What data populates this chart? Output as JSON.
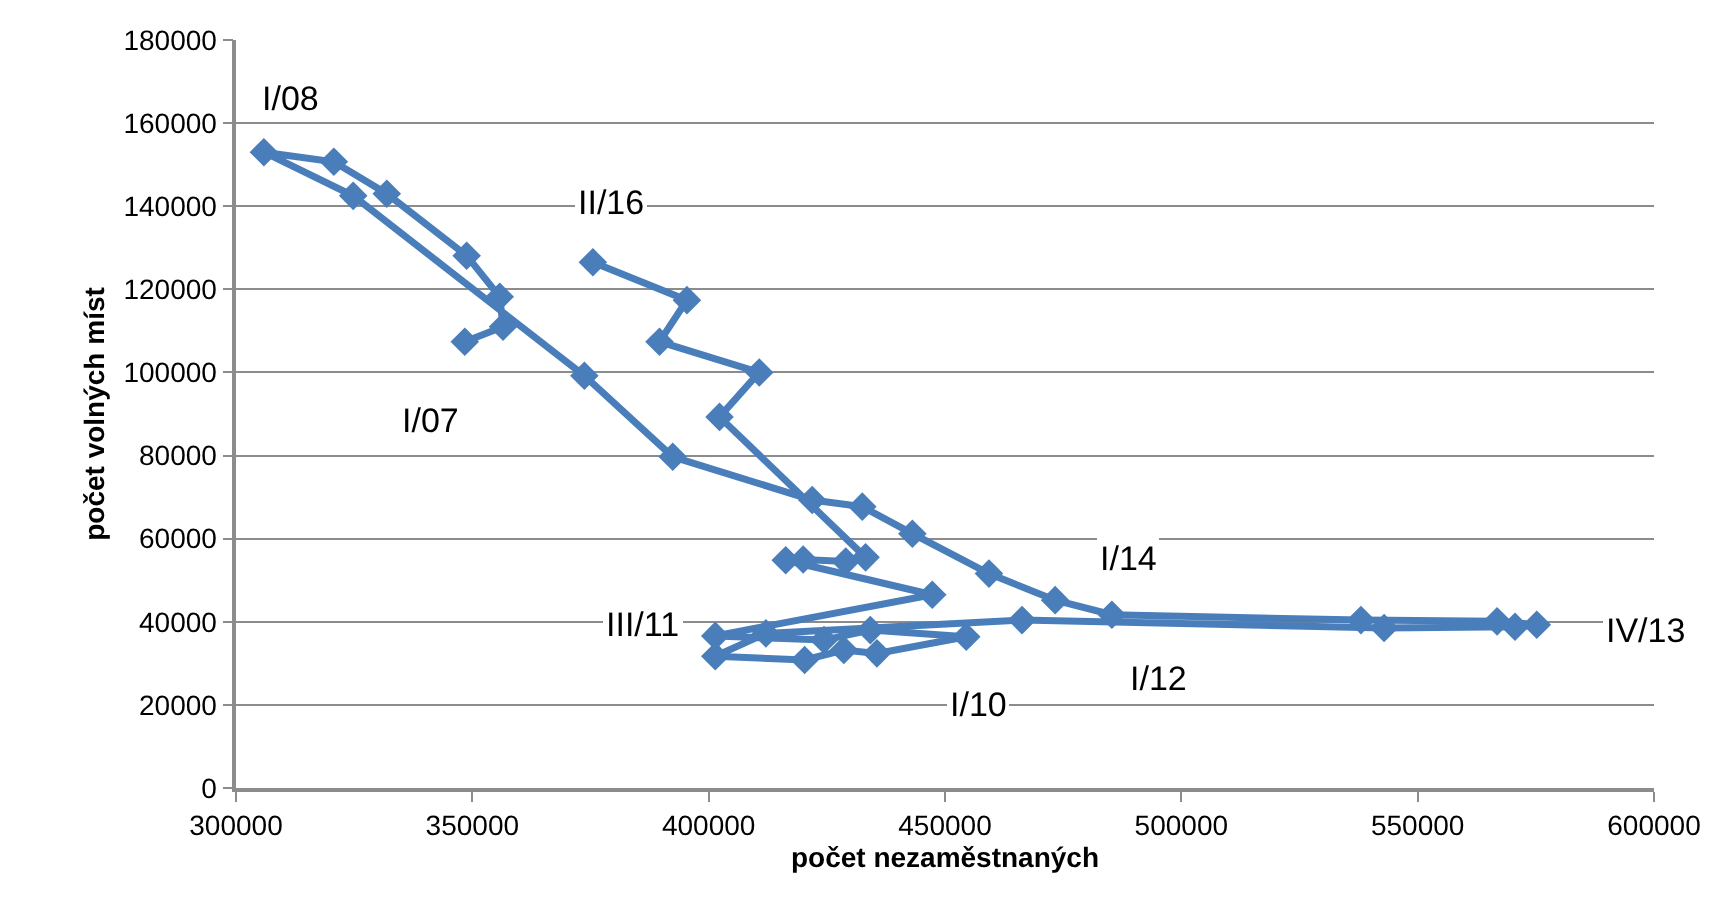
{
  "chart_data": {
    "type": "line",
    "xlabel": "počet nezaměstnaných",
    "ylabel": "počet volných míst",
    "marker": "diamond",
    "line_style": "solid",
    "grid": "y",
    "xlim": [
      300000,
      600000
    ],
    "xticks": [
      300000,
      350000,
      400000,
      450000,
      500000,
      550000,
      600000
    ],
    "ylim": [
      0,
      180000
    ],
    "yticks": [
      0,
      20000,
      40000,
      60000,
      80000,
      100000,
      120000,
      140000,
      160000,
      180000
    ],
    "x": [
      348400,
      356500,
      355800,
      348800,
      331900,
      320700,
      305900,
      324800,
      373700,
      392400,
      421900,
      432500,
      443100,
      459300,
      473300,
      485300,
      538000,
      566800,
      575200,
      570600,
      542900,
      466300,
      412100,
      401400,
      420300,
      428600,
      435600,
      454500,
      434200,
      424400,
      401400,
      447300,
      416300,
      420000,
      429000,
      433200,
      402300,
      410700,
      389600,
      395400,
      375500
    ],
    "series": [
      {
        "color": "#4a7ebb",
        "values": [
          107400,
          111000,
          118200,
          128100,
          143000,
          150700,
          153000,
          142500,
          99200,
          79700,
          69300,
          67700,
          61200,
          51600,
          45200,
          41700,
          40400,
          40100,
          39300,
          38800,
          38500,
          40400,
          37200,
          31700,
          30800,
          33200,
          32400,
          36400,
          38000,
          35600,
          36600,
          46500,
          54800,
          55000,
          54500,
          55500,
          89300,
          100000,
          107400,
          117400,
          126500
        ]
      }
    ],
    "annotations": [
      {
        "text": "I/08",
        "x": 311600,
        "y": 165900
      },
      {
        "text": "II/16",
        "x": 379400,
        "y": 141000
      },
      {
        "text": "I/07",
        "x": 341200,
        "y": 88500
      },
      {
        "text": "I/14",
        "x": 488800,
        "y": 55300
      },
      {
        "text": "III/11",
        "x": 386300,
        "y": 39000
      },
      {
        "text": "IV/13",
        "x": 598200,
        "y": 38000
      },
      {
        "text": "I/12",
        "x": 495200,
        "y": 26000
      },
      {
        "text": "I/10",
        "x": 457100,
        "y": 20200
      }
    ]
  }
}
